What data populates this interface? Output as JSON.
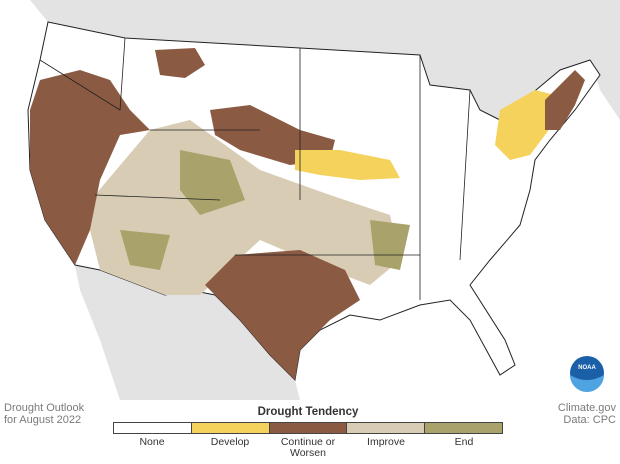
{
  "logo": "NOAA",
  "credit_left": [
    "Drought Outlook",
    "for August 2022"
  ],
  "credit_right": [
    "Climate.gov",
    "Data: CPC"
  ],
  "legend": {
    "title": "Drought Tendency",
    "items": [
      {
        "label": "None",
        "color": "#ffffff"
      },
      {
        "label": "Develop",
        "color": "#f5d25b"
      },
      {
        "label": "Continue or Worsen",
        "color": "#8b5a43"
      },
      {
        "label": "Improve",
        "color": "#d9ccb4"
      },
      {
        "label": "End",
        "color": "#a9a26a"
      }
    ]
  }
}
